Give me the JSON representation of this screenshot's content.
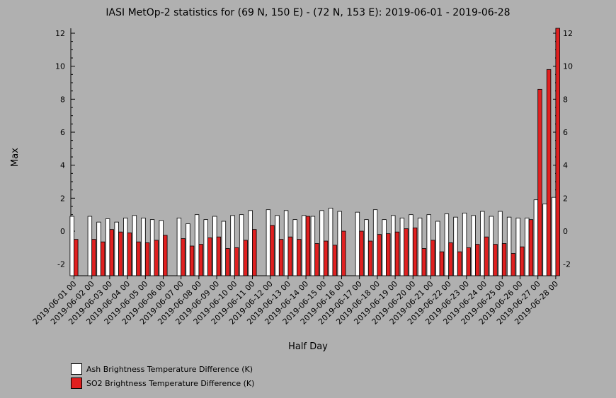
{
  "chart_data": {
    "type": "bar",
    "title": "IASI MetOp-2 statistics for (69 N, 150 E) - (72 N, 153 E): 2019-06-01 - 2019-06-28",
    "xlabel": "Half Day",
    "ylabel": "Max",
    "ylim": [
      -2.7,
      12.3
    ],
    "yticks": [
      -2,
      0,
      2,
      4,
      6,
      8,
      10,
      12
    ],
    "categories": [
      "2019-06-01 00",
      "2019-06-01 12",
      "2019-06-02 00",
      "2019-06-02 12",
      "2019-06-03 00",
      "2019-06-03 12",
      "2019-06-04 00",
      "2019-06-04 12",
      "2019-06-05 00",
      "2019-06-05 12",
      "2019-06-06 00",
      "2019-06-06 12",
      "2019-06-07 00",
      "2019-06-07 12",
      "2019-06-08 00",
      "2019-06-08 12",
      "2019-06-09 00",
      "2019-06-09 12",
      "2019-06-10 00",
      "2019-06-10 12",
      "2019-06-11 00",
      "2019-06-11 12",
      "2019-06-12 00",
      "2019-06-12 12",
      "2019-06-13 00",
      "2019-06-13 12",
      "2019-06-14 00",
      "2019-06-14 12",
      "2019-06-15 00",
      "2019-06-15 12",
      "2019-06-16 00",
      "2019-06-16 12",
      "2019-06-17 00",
      "2019-06-17 12",
      "2019-06-18 00",
      "2019-06-18 12",
      "2019-06-19 00",
      "2019-06-19 12",
      "2019-06-20 00",
      "2019-06-20 12",
      "2019-06-21 00",
      "2019-06-21 12",
      "2019-06-22 00",
      "2019-06-22 12",
      "2019-06-23 00",
      "2019-06-23 12",
      "2019-06-24 00",
      "2019-06-24 12",
      "2019-06-25 00",
      "2019-06-25 12",
      "2019-06-26 00",
      "2019-06-26 12",
      "2019-06-27 00",
      "2019-06-27 12",
      "2019-06-28 00"
    ],
    "tick_labels": [
      "2019-06-01 00",
      "2019-06-02 00",
      "2019-06-03 00",
      "2019-06-04 00",
      "2019-06-05 00",
      "2019-06-06 00",
      "2019-06-07 00",
      "2019-06-08 00",
      "2019-06-09 00",
      "2019-06-10 00",
      "2019-06-11 00",
      "2019-06-12 00",
      "2019-06-13 00",
      "2019-06-14 00",
      "2019-06-15 00",
      "2019-06-16 00",
      "2019-06-17 00",
      "2019-06-18 00",
      "2019-06-19 00",
      "2019-06-20 00",
      "2019-06-21 00",
      "2019-06-22 00",
      "2019-06-23 00",
      "2019-06-24 00",
      "2019-06-25 00",
      "2019-06-26 00",
      "2019-06-27 00",
      "2019-06-28 00"
    ],
    "series": [
      {
        "name": "Ash Brightness Temperature Difference (K)",
        "color": "#ffffff",
        "values": [
          0.9,
          null,
          0.9,
          0.55,
          0.75,
          0.55,
          0.8,
          0.95,
          0.8,
          0.7,
          0.65,
          null,
          0.8,
          0.45,
          1.0,
          0.7,
          0.9,
          0.6,
          0.95,
          1.0,
          1.25,
          null,
          1.3,
          0.95,
          1.25,
          0.7,
          0.95,
          0.9,
          1.25,
          1.4,
          1.2,
          null,
          1.15,
          0.7,
          1.3,
          0.7,
          0.95,
          0.8,
          1.0,
          0.8,
          1.0,
          0.6,
          1.05,
          0.85,
          1.1,
          0.95,
          1.2,
          0.9,
          1.2,
          0.85,
          0.8,
          0.8,
          1.9,
          1.65,
          2.05
        ]
      },
      {
        "name": "SO2 Brightness Temperature Difference (K)",
        "color": "#e02020",
        "values": [
          -0.5,
          null,
          -0.5,
          -0.65,
          0.1,
          -0.05,
          -0.1,
          -0.65,
          -0.7,
          -0.55,
          -0.25,
          null,
          -0.45,
          -0.9,
          -0.8,
          -0.4,
          -0.35,
          -1.05,
          -1.0,
          -0.55,
          0.1,
          null,
          0.35,
          -0.5,
          -0.35,
          -0.5,
          0.9,
          -0.75,
          -0.6,
          -0.85,
          0.0,
          null,
          0.0,
          -0.6,
          -0.2,
          -0.15,
          -0.05,
          0.15,
          0.2,
          -1.05,
          -0.55,
          -1.25,
          -0.7,
          -1.25,
          -1.0,
          -0.8,
          -0.35,
          -0.8,
          -0.75,
          -1.35,
          -0.95,
          0.7,
          8.6,
          9.8,
          12.3
        ]
      }
    ],
    "grid": false,
    "legend_position": "bottom-left"
  }
}
